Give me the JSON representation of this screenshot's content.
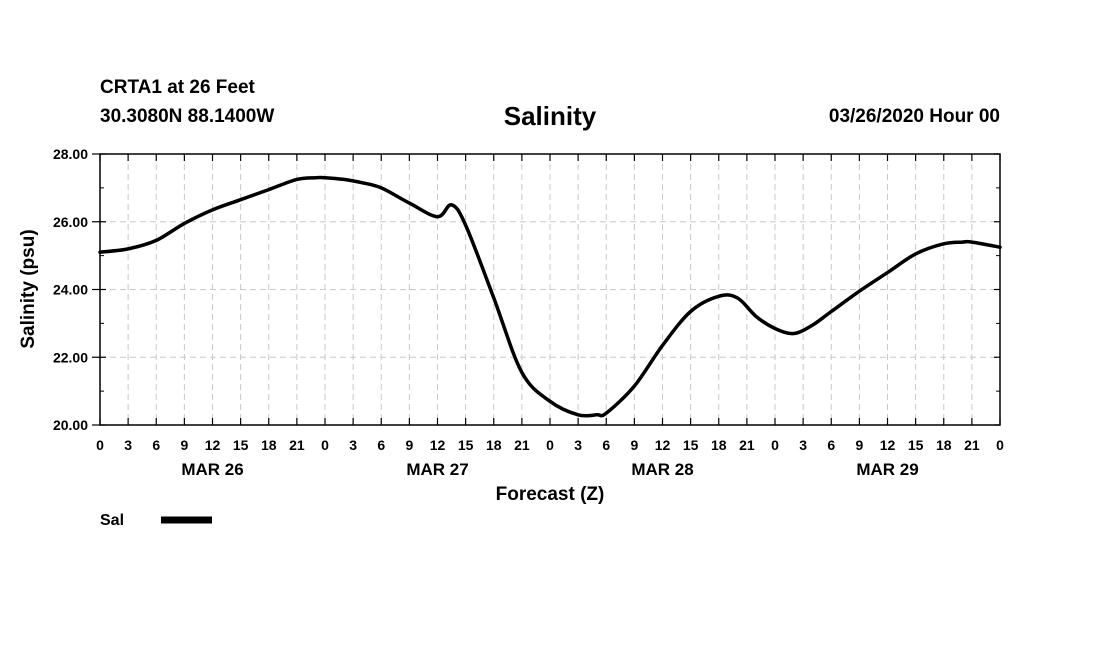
{
  "header": {
    "station": "CRTA1 at 26 Feet",
    "coords": "30.3080N 88.1400W",
    "title": "Salinity",
    "cycle": "03/26/2020 Hour 00"
  },
  "chart_data": {
    "type": "line",
    "title": "Salinity",
    "xlabel": "Forecast (Z)",
    "ylabel": "Salinity (psu)",
    "ylim": [
      20,
      28
    ],
    "y_ticks": [
      "20.00",
      "22.00",
      "24.00",
      "26.00",
      "28.00"
    ],
    "xlim_hours": [
      0,
      96
    ],
    "x_tick_labels": [
      "0",
      "3",
      "6",
      "9",
      "12",
      "15",
      "18",
      "21",
      "0",
      "3",
      "6",
      "9",
      "12",
      "15",
      "18",
      "21",
      "0",
      "3",
      "6",
      "9",
      "12",
      "15",
      "18",
      "21",
      "0",
      "3",
      "6",
      "9",
      "12",
      "15",
      "18",
      "21",
      "0"
    ],
    "day_labels": [
      "MAR 26",
      "MAR 27",
      "MAR 28",
      "MAR 29"
    ],
    "grid": true,
    "legend_position": "bottom-left",
    "series": [
      {
        "name": "Sal",
        "color": "#000000",
        "x_hours": [
          0,
          3,
          6,
          9,
          12,
          15,
          18,
          21,
          23,
          24,
          26,
          28,
          30,
          33,
          36,
          37.5,
          39,
          42,
          45,
          48,
          51,
          53,
          54,
          57,
          60,
          63,
          66,
          68,
          70,
          72,
          74,
          76,
          78,
          81,
          84,
          87,
          90,
          92,
          93,
          96
        ],
        "values": [
          25.1,
          25.2,
          25.45,
          25.95,
          26.35,
          26.65,
          26.95,
          27.25,
          27.3,
          27.3,
          27.25,
          27.15,
          27.0,
          26.55,
          26.15,
          26.5,
          25.9,
          23.75,
          21.55,
          20.7,
          20.3,
          20.3,
          20.35,
          21.15,
          22.35,
          23.35,
          23.8,
          23.75,
          23.2,
          22.85,
          22.7,
          22.95,
          23.35,
          23.95,
          24.5,
          25.05,
          25.35,
          25.4,
          25.4,
          25.25
        ]
      }
    ]
  }
}
